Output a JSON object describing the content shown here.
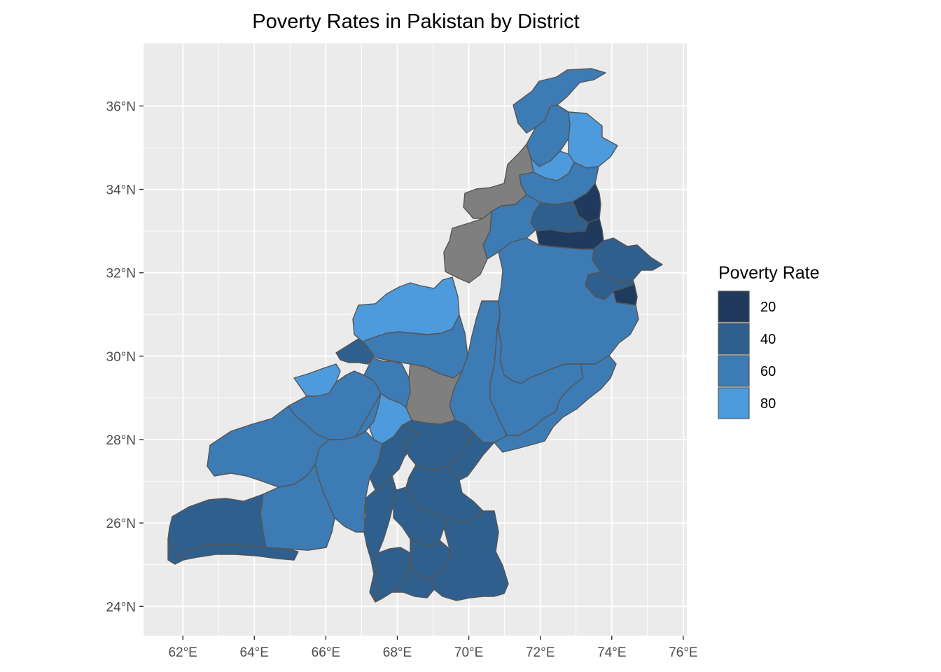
{
  "title": "Poverty Rates in Pakistan by District",
  "chart_data": {
    "type": "choropleth",
    "title": "Poverty Rates in Pakistan by District",
    "x_axis": {
      "ticks": [
        "62°E",
        "64°E",
        "66°E",
        "68°E",
        "70°E",
        "72°E",
        "74°E",
        "76°E"
      ],
      "values": [
        62,
        64,
        66,
        68,
        70,
        72,
        74,
        76
      ],
      "range": [
        60.9,
        76.1
      ]
    },
    "y_axis": {
      "ticks": [
        "24°N",
        "26°N",
        "28°N",
        "30°N",
        "32°N",
        "34°N",
        "36°N"
      ],
      "values": [
        24,
        26,
        28,
        30,
        32,
        34,
        36
      ],
      "range": [
        23.3,
        37.5
      ]
    },
    "grid": true,
    "panel_background": "#EBEBEB",
    "grid_color": "#FFFFFF",
    "missing_color": "#7F7F7F",
    "legend": {
      "title": "Poverty Rate",
      "position": "right",
      "entries": [
        {
          "label": "20",
          "value": 20,
          "color": "#1F3A5C"
        },
        {
          "label": "40",
          "value": 40,
          "color": "#2F5F8C"
        },
        {
          "label": "60",
          "value": 60,
          "color": "#3D7BB5"
        },
        {
          "label": "80",
          "value": 80,
          "color": "#4D9ADD"
        }
      ]
    },
    "regions": [
      {
        "id": "chitral",
        "value": 60
      },
      {
        "id": "upper-north-1",
        "value": 60
      },
      {
        "id": "upper-north-2",
        "value": 80
      },
      {
        "id": "swat-area",
        "value": 60
      },
      {
        "id": "kohistan",
        "value": 80
      },
      {
        "id": "peshawar-area",
        "value": 60
      },
      {
        "id": "islamabad",
        "value": 20
      },
      {
        "id": "rawalpindi",
        "value": 40
      },
      {
        "id": "chakwal-jhelum",
        "value": 20
      },
      {
        "id": "gujrat-sialkot",
        "value": 40
      },
      {
        "id": "lahore-east",
        "value": 40
      },
      {
        "id": "kasur",
        "value": 20
      },
      {
        "id": "central-punjab",
        "value": 60
      },
      {
        "id": "multan-area",
        "value": 60
      },
      {
        "id": "bahawalpur",
        "value": 60
      },
      {
        "id": "dg-khan",
        "value": 60
      },
      {
        "id": "zhob-qila-saifullah",
        "value": 80
      },
      {
        "id": "north-baloch",
        "value": 60
      },
      {
        "id": "quetta",
        "value": 40
      },
      {
        "id": "chagai",
        "value": 80
      },
      {
        "id": "kharan",
        "value": 60
      },
      {
        "id": "kalat",
        "value": 60
      },
      {
        "id": "nasirabad",
        "value": 80
      },
      {
        "id": "washuk",
        "value": 60
      },
      {
        "id": "panjgur",
        "value": 60
      },
      {
        "id": "kech",
        "value": 40
      },
      {
        "id": "gwadar",
        "value": 40
      },
      {
        "id": "awaran",
        "value": 60
      },
      {
        "id": "lasbela",
        "value": 40
      },
      {
        "id": "khuzdar",
        "value": 40
      },
      {
        "id": "jacobabad-larkana",
        "value": 40
      },
      {
        "id": "ghotki",
        "value": 40
      },
      {
        "id": "sukkur-khairpur",
        "value": 40
      },
      {
        "id": "central-sindh",
        "value": 40
      },
      {
        "id": "hyderabad",
        "value": 40
      },
      {
        "id": "thatta",
        "value": 40
      },
      {
        "id": "tharparkar",
        "value": 40
      },
      {
        "id": "karachi",
        "value": 40
      },
      {
        "id": "fata-north",
        "value": null
      },
      {
        "id": "fata-south",
        "value": null
      },
      {
        "id": "dera-bugti",
        "value": null
      }
    ]
  }
}
